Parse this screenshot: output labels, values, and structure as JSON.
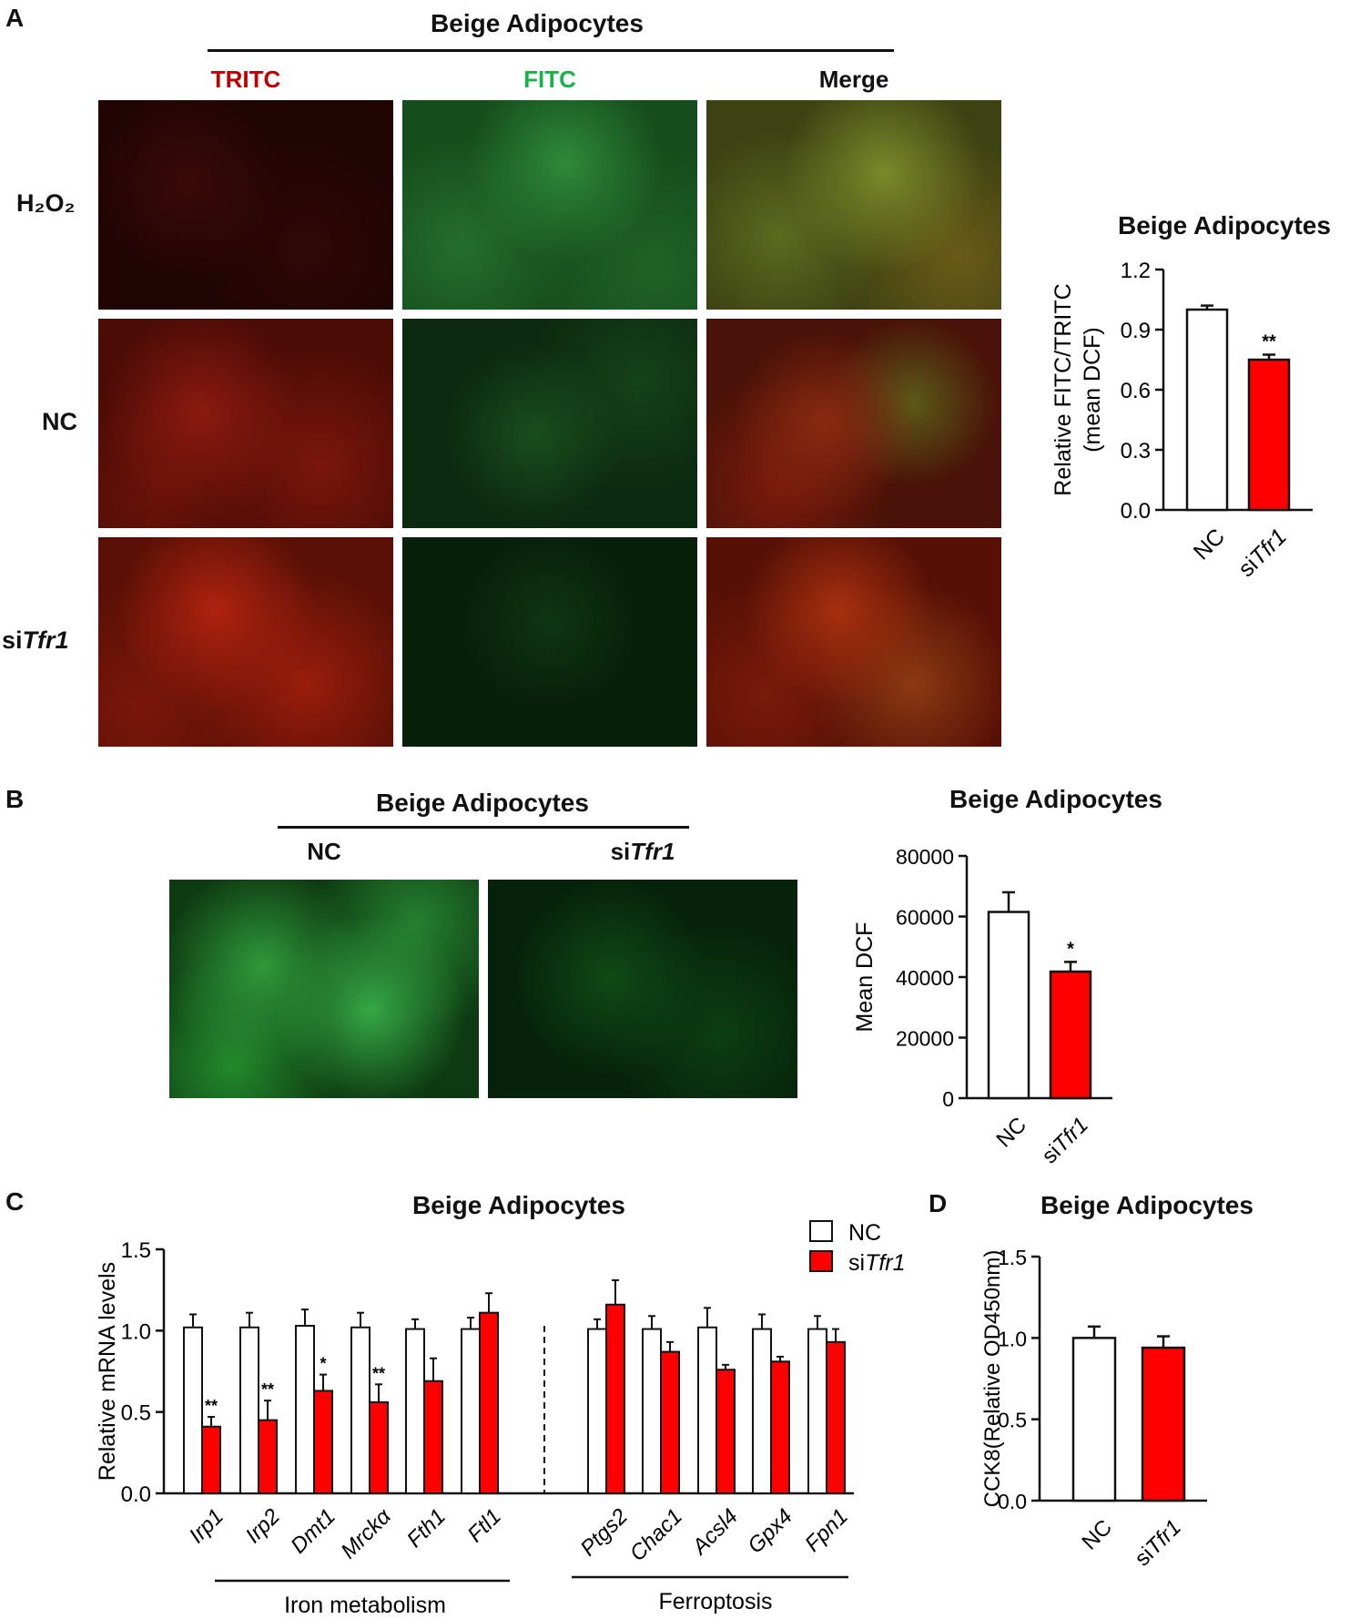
{
  "panelA": {
    "letter": "A",
    "group_title": "Beige Adipocytes",
    "channels": [
      "TRITC",
      "FITC",
      "Merge"
    ],
    "rows": [
      {
        "label": "H₂O₂"
      },
      {
        "label": "NC"
      },
      {
        "prefix": "si",
        "gene": "Tfr1"
      }
    ],
    "chart": {
      "title": "Beige Adipocytes",
      "ylabel_line1": "Relative FITC/TRITC",
      "ylabel_line2": "(mean DCF)",
      "ylim": [
        0,
        1.2
      ],
      "ticks": [
        "0.0",
        "0.3",
        "0.6",
        "0.9",
        "1.2"
      ],
      "categories": [
        {
          "prefix": "",
          "gene": "NC"
        },
        {
          "prefix": "si",
          "gene": "Tfr1"
        }
      ],
      "values": [
        1.0,
        0.75
      ],
      "errors": [
        0.02,
        0.025
      ],
      "significance": [
        "",
        "**"
      ]
    }
  },
  "panelB": {
    "letter": "B",
    "group_title": "Beige Adipocytes",
    "columns": [
      {
        "prefix": "",
        "gene": "NC"
      },
      {
        "prefix": "si",
        "gene": "Tfr1"
      }
    ],
    "chart": {
      "title": "Beige Adipocytes",
      "ylabel": "Mean DCF",
      "ylim": [
        0,
        80000
      ],
      "ticks": [
        "0",
        "20000",
        "40000",
        "60000",
        "80000"
      ],
      "categories": [
        {
          "prefix": "",
          "gene": "NC"
        },
        {
          "prefix": "si",
          "gene": "Tfr1"
        }
      ],
      "values": [
        61500,
        41800
      ],
      "errors": [
        6500,
        3200
      ],
      "significance": [
        "",
        "*"
      ]
    }
  },
  "panelC": {
    "letter": "C",
    "title": "Beige Adipocytes",
    "ylabel": "Relative mRNA levels",
    "ylim": [
      0,
      1.5
    ],
    "ticks": [
      "0.0",
      "0.5",
      "1.0",
      "1.5"
    ],
    "legend": [
      {
        "prefix": "",
        "gene": "NC"
      },
      {
        "prefix": "si",
        "gene": "Tfr1"
      }
    ],
    "genes": [
      "Irp1",
      "Irp2",
      "Dmt1",
      "Mrckα",
      "Fth1",
      "Ftl1",
      "Ptgs2",
      "Chac1",
      "Acsl4",
      "Gpx4",
      "Fpn1"
    ],
    "nc_values": [
      1.02,
      1.02,
      1.03,
      1.02,
      1.01,
      1.01,
      1.01,
      1.01,
      1.02,
      1.01,
      1.01
    ],
    "nc_errors": [
      0.08,
      0.09,
      0.1,
      0.09,
      0.06,
      0.07,
      0.06,
      0.08,
      0.12,
      0.09,
      0.08
    ],
    "si_values": [
      0.41,
      0.45,
      0.63,
      0.56,
      0.69,
      1.11,
      1.16,
      0.87,
      0.76,
      0.81,
      0.93
    ],
    "si_errors": [
      0.06,
      0.12,
      0.1,
      0.11,
      0.14,
      0.12,
      0.15,
      0.06,
      0.03,
      0.03,
      0.08
    ],
    "significance": [
      "**",
      "**",
      "*",
      "**",
      "",
      "",
      "",
      "",
      "",
      "",
      ""
    ],
    "group1_label": "Iron metabolism",
    "group2_label": "Ferroptosis"
  },
  "panelD": {
    "letter": "D",
    "title": "Beige Adipocytes",
    "ylabel": "CCK8(Relative OD450nm)",
    "ylim": [
      0,
      1.5
    ],
    "ticks": [
      "0.0",
      "0.5",
      "1.0",
      "1.5"
    ],
    "categories": [
      {
        "prefix": "",
        "gene": "NC"
      },
      {
        "prefix": "si",
        "gene": "Tfr1"
      }
    ],
    "values": [
      1.0,
      0.94
    ],
    "errors": [
      0.07,
      0.07
    ],
    "significance": [
      "",
      ""
    ]
  },
  "colors": {
    "red_bar": "#ff0000",
    "tritc_label": "#c00000",
    "fitc_label": "#19b34a"
  }
}
